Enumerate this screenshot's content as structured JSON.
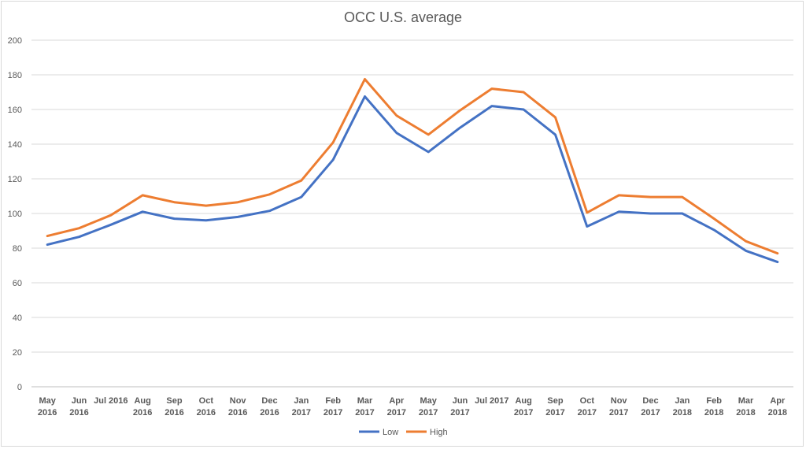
{
  "chart_data": {
    "type": "line",
    "title": "OCC U.S. average",
    "xlabel": "",
    "ylabel": "",
    "ylim": [
      0,
      200
    ],
    "yticks": [
      0,
      20,
      40,
      60,
      80,
      100,
      120,
      140,
      160,
      180,
      200
    ],
    "grid": true,
    "legend_position": "bottom",
    "categories": [
      [
        "May",
        "2016"
      ],
      [
        "Jun",
        "2016"
      ],
      [
        "Jul 2016"
      ],
      [
        "Aug",
        "2016"
      ],
      [
        "Sep",
        "2016"
      ],
      [
        "Oct",
        "2016"
      ],
      [
        "Nov",
        "2016"
      ],
      [
        "Dec",
        "2016"
      ],
      [
        "Jan",
        "2017"
      ],
      [
        "Feb",
        "2017"
      ],
      [
        "Mar",
        "2017"
      ],
      [
        "Apr",
        "2017"
      ],
      [
        "May",
        "2017"
      ],
      [
        "Jun",
        "2017"
      ],
      [
        "Jul 2017"
      ],
      [
        "Aug",
        "2017"
      ],
      [
        "Sep",
        "2017"
      ],
      [
        "Oct",
        "2017"
      ],
      [
        "Nov",
        "2017"
      ],
      [
        "Dec",
        "2017"
      ],
      [
        "Jan",
        "2018"
      ],
      [
        "Feb",
        "2018"
      ],
      [
        "Mar",
        "2018"
      ],
      [
        "Apr",
        "2018"
      ]
    ],
    "series": [
      {
        "name": "Low",
        "color": "#4472c4",
        "values": [
          82,
          86.5,
          93.5,
          101,
          97,
          96,
          98,
          101.5,
          109.5,
          131,
          167.5,
          146.5,
          135.5,
          149.5,
          162,
          160,
          145.5,
          92.5,
          101,
          100,
          100,
          90.5,
          78.5,
          72
        ]
      },
      {
        "name": "High",
        "color": "#ed7d31",
        "values": [
          87,
          91.5,
          99,
          110.5,
          106.5,
          104.5,
          106.5,
          111,
          119,
          141,
          177.5,
          156.5,
          145.5,
          159.5,
          172,
          170,
          155.5,
          100.5,
          110.5,
          109.5,
          109.5,
          97,
          84,
          77
        ]
      }
    ]
  }
}
